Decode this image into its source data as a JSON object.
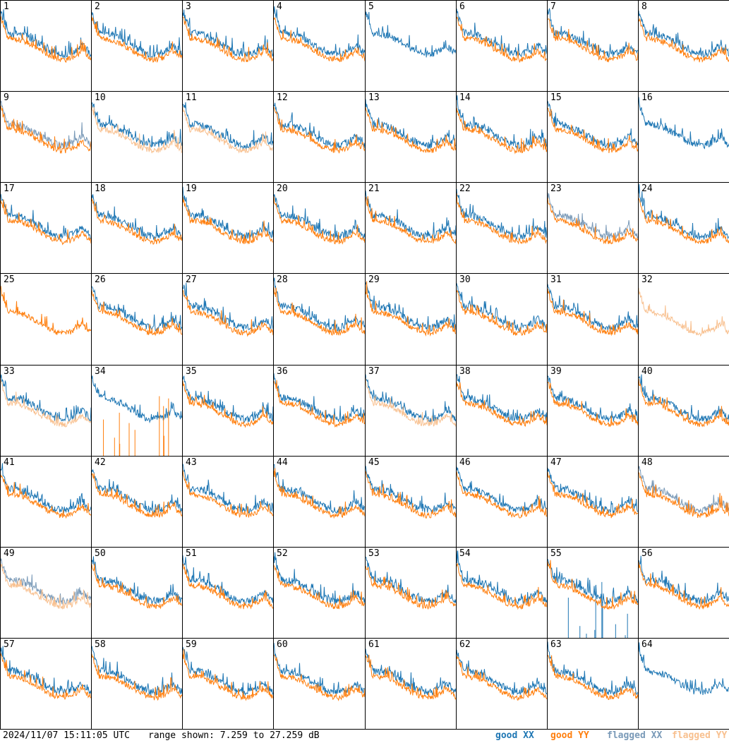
{
  "chart_data": {
    "type": "line",
    "title": "",
    "panel_count": 64,
    "grid_columns": 8,
    "grid_rows": 8,
    "panels": [
      "1",
      "2",
      "3",
      "4",
      "5",
      "6",
      "7",
      "8",
      "9",
      "10",
      "11",
      "12",
      "13",
      "14",
      "15",
      "16",
      "17",
      "18",
      "19",
      "20",
      "21",
      "22",
      "23",
      "24",
      "25",
      "26",
      "27",
      "28",
      "29",
      "30",
      "31",
      "32",
      "33",
      "34",
      "35",
      "36",
      "37",
      "38",
      "39",
      "40",
      "41",
      "42",
      "43",
      "44",
      "45",
      "46",
      "47",
      "48",
      "49",
      "50",
      "51",
      "52",
      "53",
      "54",
      "55",
      "56",
      "57",
      "58",
      "59",
      "60",
      "61",
      "62",
      "63",
      "64"
    ],
    "ylim": [
      7.259,
      27.259
    ],
    "yunit": "dB",
    "series": [
      {
        "name": "good XX",
        "color": "#1f77b4"
      },
      {
        "name": "good YY",
        "color": "#ff7f0e"
      },
      {
        "name": "flagged XX",
        "color": "#7a9ab8"
      },
      {
        "name": "flagged YY",
        "color": "#f8c08f"
      }
    ],
    "panel_status": {
      "flagged_xx": [
        9,
        23,
        48,
        49
      ],
      "flagged_yy": [
        5,
        10,
        11,
        32,
        33,
        37,
        49
      ],
      "missing_yy": [
        5,
        16,
        64
      ],
      "missing_xx": [
        25,
        32
      ],
      "yy_low_spikes": [
        34
      ],
      "xx_low_spikes": [
        39,
        55
      ]
    },
    "timestamp": "2024/11/07 15:11:05 UTC",
    "range_text": "range shown: 7.259 to 27.259 dB",
    "legend": [
      "good XX",
      "good YY",
      "flagged XX",
      "flagged YY"
    ]
  },
  "colors": {
    "good_xx": "#1f77b4",
    "good_yy": "#ff7f0e",
    "flagged_xx": "#7a9ab8",
    "flagged_yy": "#f8c08f"
  }
}
